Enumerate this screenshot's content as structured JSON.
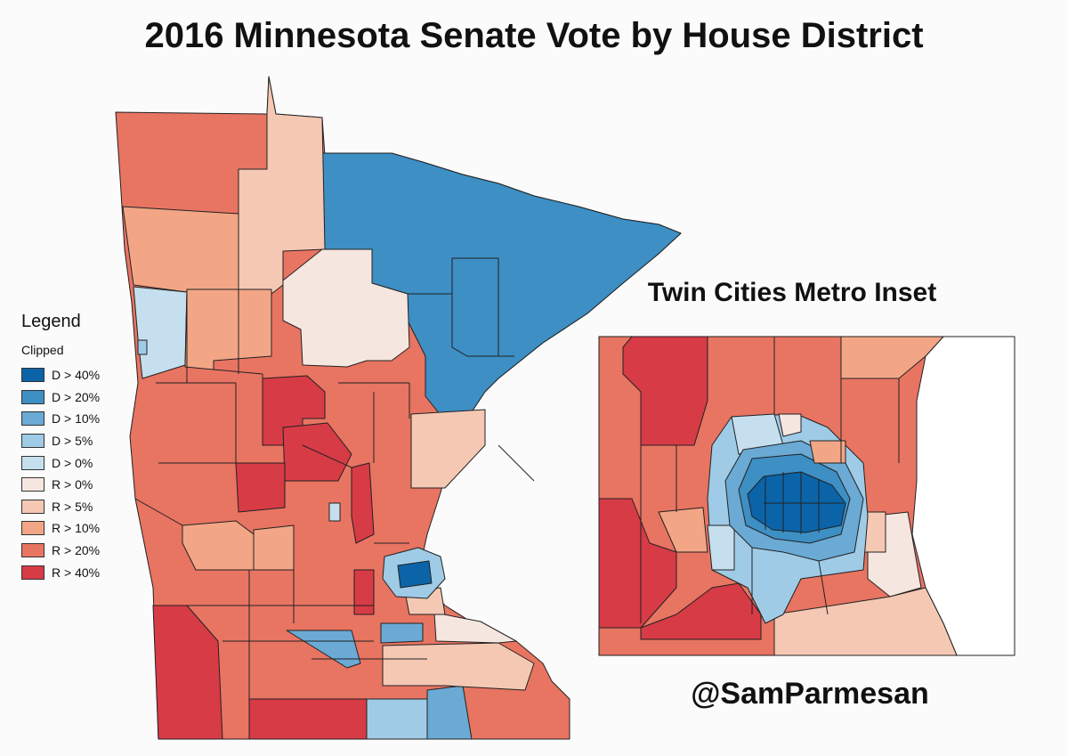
{
  "title": "2016 Minnesota Senate Vote by House District",
  "inset_title": "Twin Cities Metro Inset",
  "credit": "@SamParmesan",
  "legend": {
    "title": "Legend",
    "subtitle": "Clipped",
    "items": [
      {
        "label": "D > 40%",
        "color": "#0b64a8"
      },
      {
        "label": "D > 20%",
        "color": "#3d8fc4"
      },
      {
        "label": "D > 10%",
        "color": "#6aaad4"
      },
      {
        "label": "D > 5%",
        "color": "#9fcbe6"
      },
      {
        "label": "D > 0%",
        "color": "#c5dfee"
      },
      {
        "label": "R > 0%",
        "color": "#f6e6e0"
      },
      {
        "label": "R > 5%",
        "color": "#f5c8b4"
      },
      {
        "label": "R > 10%",
        "color": "#f2a686"
      },
      {
        "label": "R > 20%",
        "color": "#e87462"
      },
      {
        "label": "R > 40%",
        "color": "#d63b46"
      }
    ]
  }
}
